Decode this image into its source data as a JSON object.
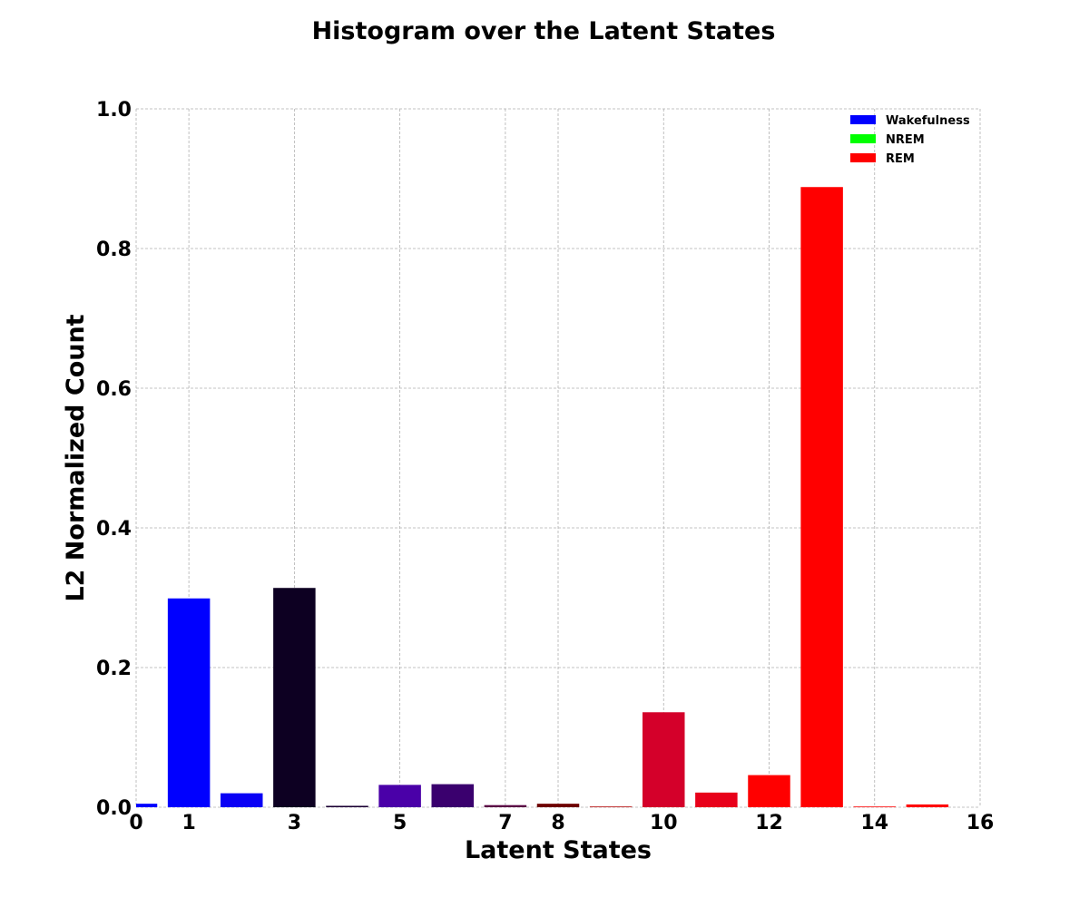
{
  "chart_data": {
    "type": "bar",
    "title": "Histogram over the Latent States",
    "xlabel": "Latent States",
    "ylabel": "L2 Normalized Count",
    "xlim": [
      0,
      16
    ],
    "ylim": [
      0,
      1.0
    ],
    "xticks": [
      0,
      1,
      3,
      5,
      7,
      8,
      10,
      12,
      14,
      16
    ],
    "yticks": [
      0.0,
      0.2,
      0.4,
      0.6,
      0.8,
      1.0
    ],
    "ytick_labels": [
      "0.0",
      "0.2",
      "0.4",
      "0.6",
      "0.8",
      "1.0"
    ],
    "grid": true,
    "legend_position": "top-right",
    "legend": [
      {
        "label": "Wakefulness",
        "color": "#0000ff"
      },
      {
        "label": "NREM",
        "color": "#00ff00"
      },
      {
        "label": "REM",
        "color": "#ff0000"
      }
    ],
    "bars": [
      {
        "x": 0,
        "value": 0.005,
        "color": "#0000ff"
      },
      {
        "x": 1,
        "value": 0.299,
        "color": "#0000ff"
      },
      {
        "x": 2,
        "value": 0.02,
        "color": "#0a00f5"
      },
      {
        "x": 3,
        "value": 0.314,
        "color": "#0d0022"
      },
      {
        "x": 4,
        "value": 0.002,
        "color": "#1a0033"
      },
      {
        "x": 5,
        "value": 0.032,
        "color": "#4a00a8"
      },
      {
        "x": 6,
        "value": 0.033,
        "color": "#3a006e"
      },
      {
        "x": 7,
        "value": 0.003,
        "color": "#5a0044"
      },
      {
        "x": 8,
        "value": 0.005,
        "color": "#6e0000"
      },
      {
        "x": 9,
        "value": 0.001,
        "color": "#b00000"
      },
      {
        "x": 10,
        "value": 0.136,
        "color": "#d4002a"
      },
      {
        "x": 11,
        "value": 0.021,
        "color": "#e8001a"
      },
      {
        "x": 12,
        "value": 0.046,
        "color": "#ff0000"
      },
      {
        "x": 13,
        "value": 0.888,
        "color": "#ff0000"
      },
      {
        "x": 14,
        "value": 0.001,
        "color": "#ff0000"
      },
      {
        "x": 15,
        "value": 0.004,
        "color": "#ff0000"
      }
    ]
  }
}
